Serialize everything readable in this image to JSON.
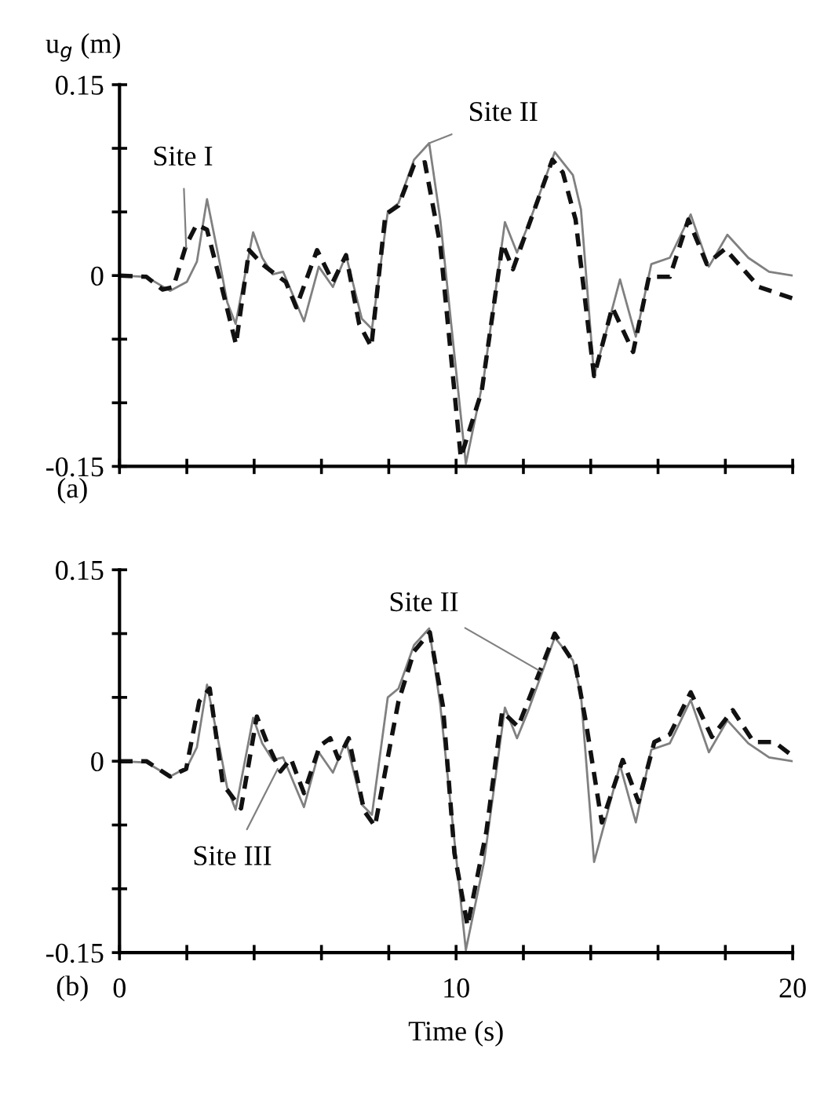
{
  "chart_data": [
    {
      "type": "line",
      "ylabel": "u$_{g}$ (m)",
      "xlim": [
        0,
        20
      ],
      "ylim": [
        -0.15,
        0.15
      ],
      "tick_labels": "y",
      "xticks": [
        0,
        {
          "value": 2,
          "label": null
        },
        {
          "value": 4,
          "label": null
        },
        {
          "value": 6,
          "label": null
        },
        {
          "value": 8,
          "label": null
        },
        10,
        {
          "value": 12,
          "label": null
        },
        {
          "value": 14,
          "label": null
        },
        {
          "value": 16,
          "label": null
        },
        {
          "value": 18,
          "label": null
        },
        20
      ],
      "yticks": [
        {
          "value": -0.15,
          "label": "-0.15"
        },
        {
          "value": -0.1,
          "label": null
        },
        {
          "value": -0.05,
          "label": null
        },
        0,
        {
          "value": 0.05,
          "label": null
        },
        {
          "value": 0.1,
          "label": null
        },
        0.15
      ],
      "series": [
        {
          "color": "#808080",
          "line_style": "solid",
          "x": [
            0,
            0.8,
            1.5,
            2.0,
            2.3,
            2.6,
            3.0,
            3.2,
            3.45,
            3.97,
            4.24,
            4.55,
            4.86,
            5.48,
            5.92,
            6.34,
            6.73,
            7.2,
            7.5,
            7.97,
            8.29,
            8.75,
            9.2,
            9.53,
            10.29,
            10.83,
            11.45,
            11.81,
            12.15,
            12.93,
            13.47,
            13.71,
            14.1,
            14.48,
            14.87,
            15.34,
            15.8,
            16.35,
            16.97,
            17.51,
            18.06,
            18.68,
            19.3,
            20.0
          ],
          "values": [
            0,
            -0.001,
            -0.012,
            -0.005,
            0.011,
            0.06,
            0.007,
            -0.021,
            -0.038,
            0.034,
            0.014,
            0.001,
            0.003,
            -0.036,
            0.007,
            -0.009,
            0.016,
            -0.034,
            -0.042,
            0.05,
            0.057,
            0.091,
            0.104,
            0.044,
            -0.148,
            -0.079,
            0.042,
            0.018,
            0.04,
            0.097,
            0.079,
            0.052,
            -0.079,
            -0.042,
            -0.003,
            -0.048,
            0.009,
            0.014,
            0.048,
            0.007,
            0.032,
            0.014,
            0.003,
            0.0
          ]
        },
        {
          "color": "#111111",
          "line_style": "dashed",
          "x": [
            0,
            0.8,
            1.28,
            1.6,
            1.98,
            2.29,
            2.6,
            3.0,
            3.46,
            3.85,
            4.24,
            4.63,
            4.94,
            5.25,
            5.87,
            6.34,
            6.73,
            7.12,
            7.48,
            7.9,
            8.29,
            8.75,
            9.07,
            9.53,
            10.14,
            10.76,
            11.38,
            11.69,
            12.86,
            13.17,
            13.55,
            14.1,
            14.64,
            15.26,
            15.73,
            16.35,
            16.9,
            17.45,
            17.99,
            19.0,
            20.0
          ],
          "values": [
            0,
            -0.001,
            -0.011,
            -0.009,
            0.024,
            0.04,
            0.036,
            -0.005,
            -0.054,
            0.02,
            0.009,
            0.001,
            -0.005,
            -0.025,
            0.02,
            -0.005,
            0.016,
            -0.038,
            -0.056,
            0.048,
            0.055,
            0.087,
            0.089,
            0.024,
            -0.143,
            -0.091,
            0.025,
            0.005,
            0.091,
            0.081,
            0.044,
            -0.079,
            -0.025,
            -0.06,
            -0.001,
            -0.001,
            0.044,
            0.009,
            0.021,
            -0.009,
            -0.018
          ]
        }
      ],
      "annotations": [
        {
          "text": "Site I",
          "x": 1.98,
          "y": 0.022
        },
        {
          "text": "Site II",
          "x": 9.2,
          "y": 0.104
        },
        "(a)"
      ]
    },
    {
      "type": "line",
      "xlabel": "Time (s)",
      "xlim": [
        0,
        20
      ],
      "ylim": [
        -0.15,
        0.15
      ],
      "xticks": [
        0,
        {
          "value": 2,
          "label": null
        },
        {
          "value": 4,
          "label": null
        },
        {
          "value": 6,
          "label": null
        },
        {
          "value": 8,
          "label": null
        },
        10,
        {
          "value": 12,
          "label": null
        },
        {
          "value": 14,
          "label": null
        },
        {
          "value": 16,
          "label": null
        },
        {
          "value": 18,
          "label": null
        },
        20
      ],
      "yticks": [
        {
          "value": -0.15,
          "label": "-0.15"
        },
        {
          "value": -0.1,
          "label": null
        },
        {
          "value": -0.05,
          "label": null
        },
        0,
        {
          "value": 0.05,
          "label": null
        },
        {
          "value": 0.1,
          "label": null
        },
        0.15
      ],
      "series": [
        {
          "color": "#808080",
          "line_style": "solid",
          "x": [
            0,
            0.8,
            1.5,
            2.0,
            2.3,
            2.6,
            3.0,
            3.2,
            3.45,
            3.97,
            4.24,
            4.55,
            4.86,
            5.48,
            5.92,
            6.34,
            6.73,
            7.2,
            7.5,
            7.97,
            8.29,
            8.75,
            9.2,
            9.53,
            10.29,
            10.83,
            11.45,
            11.81,
            12.15,
            12.93,
            13.47,
            13.71,
            14.1,
            14.48,
            14.87,
            15.34,
            15.8,
            16.35,
            16.97,
            17.51,
            18.06,
            18.68,
            19.3,
            20.0
          ],
          "values": [
            0,
            -0.001,
            -0.012,
            -0.005,
            0.011,
            0.06,
            0.007,
            -0.021,
            -0.038,
            0.034,
            0.014,
            0.001,
            0.003,
            -0.036,
            0.007,
            -0.009,
            0.016,
            -0.034,
            -0.042,
            0.05,
            0.057,
            0.091,
            0.104,
            0.044,
            -0.148,
            -0.079,
            0.042,
            0.018,
            0.04,
            0.097,
            0.079,
            0.052,
            -0.079,
            -0.042,
            -0.003,
            -0.048,
            0.009,
            0.014,
            0.048,
            0.007,
            0.032,
            0.014,
            0.003,
            0.0
          ]
        },
        {
          "color": "#111111",
          "line_style": "dashed",
          "x": [
            0,
            0.8,
            1.5,
            1.98,
            2.37,
            2.68,
            3.07,
            3.61,
            4.08,
            4.39,
            4.78,
            5.09,
            5.48,
            5.95,
            6.26,
            6.5,
            6.81,
            7.27,
            7.59,
            8.05,
            8.29,
            8.75,
            9.22,
            9.61,
            9.95,
            10.34,
            10.9,
            11.37,
            11.84,
            12.93,
            13.55,
            13.86,
            14.33,
            14.95,
            15.42,
            15.89,
            16.35,
            16.97,
            17.6,
            18.22,
            18.84,
            19.46,
            20.0
          ],
          "values": [
            0,
            0,
            -0.012,
            -0.006,
            0.047,
            0.057,
            -0.018,
            -0.037,
            0.035,
            0.014,
            -0.008,
            0.002,
            -0.025,
            0.012,
            0.018,
            0.002,
            0.018,
            -0.039,
            -0.051,
            0.014,
            0.047,
            0.086,
            0.101,
            0.043,
            -0.072,
            -0.129,
            -0.055,
            0.039,
            0.027,
            0.1,
            0.075,
            0.03,
            -0.048,
            0.001,
            -0.032,
            0.015,
            0.021,
            0.054,
            0.019,
            0.04,
            0.015,
            0.015,
            0.004
          ]
        }
      ],
      "annotations": [
        {
          "text": "Site II",
          "x": 12.54,
          "y": 0.07
        },
        {
          "text": "Site III",
          "x": 4.7,
          "y": -0.006
        },
        "(b)"
      ]
    }
  ]
}
